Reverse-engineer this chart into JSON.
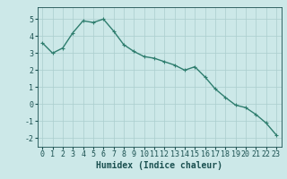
{
  "x": [
    0,
    1,
    2,
    3,
    4,
    5,
    6,
    7,
    8,
    9,
    10,
    11,
    12,
    13,
    14,
    15,
    16,
    17,
    18,
    19,
    20,
    21,
    22,
    23
  ],
  "y": [
    3.6,
    3.0,
    3.3,
    4.2,
    4.9,
    4.8,
    5.0,
    4.3,
    3.5,
    3.1,
    2.8,
    2.7,
    2.5,
    2.3,
    2.0,
    2.2,
    1.6,
    0.9,
    0.4,
    -0.05,
    -0.2,
    -0.6,
    -1.1,
    -1.8
  ],
  "line_color": "#2e7d6e",
  "marker": "+",
  "marker_size": 3,
  "linewidth": 1.0,
  "xlabel": "Humidex (Indice chaleur)",
  "xlim": [
    -0.5,
    23.5
  ],
  "ylim": [
    -2.5,
    5.7
  ],
  "yticks": [
    -2,
    -1,
    0,
    1,
    2,
    3,
    4,
    5
  ],
  "xticks": [
    0,
    1,
    2,
    3,
    4,
    5,
    6,
    7,
    8,
    9,
    10,
    11,
    12,
    13,
    14,
    15,
    16,
    17,
    18,
    19,
    20,
    21,
    22,
    23
  ],
  "background_color": "#cce8e8",
  "grid_color": "#aacece",
  "tick_label_color": "#1a5050",
  "xlabel_color": "#1a5050",
  "xlabel_fontsize": 7,
  "tick_fontsize": 6
}
